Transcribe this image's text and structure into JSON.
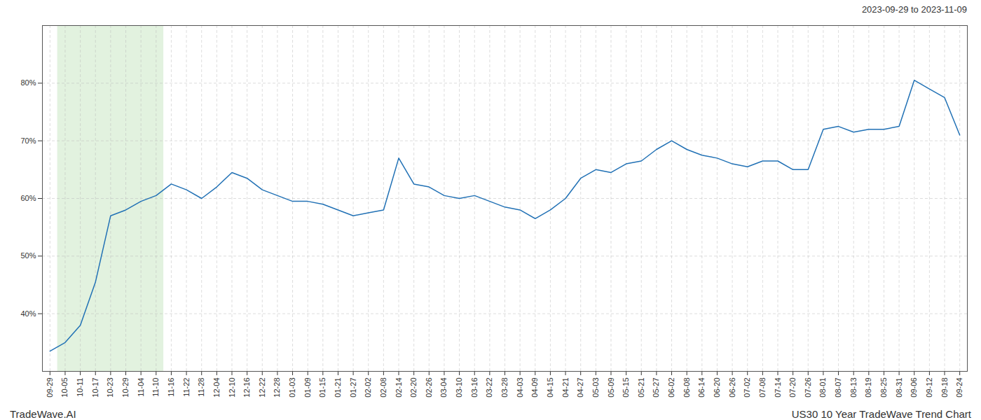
{
  "chart_data": {
    "type": "line",
    "title": "2023-09-29 to 2023-11-09",
    "annotations": [
      {
        "text": "TradeWave.AI"
      },
      {
        "text": "US30 10 Year TradeWave Trend Chart"
      }
    ],
    "categories": [
      "09-29",
      "10-05",
      "10-11",
      "10-17",
      "10-23",
      "10-29",
      "11-04",
      "11-10",
      "11-16",
      "11-22",
      "11-28",
      "12-04",
      "12-10",
      "12-16",
      "12-22",
      "12-28",
      "01-03",
      "01-09",
      "01-15",
      "01-21",
      "01-27",
      "02-02",
      "02-08",
      "02-14",
      "02-20",
      "02-26",
      "03-04",
      "03-10",
      "03-16",
      "03-22",
      "03-28",
      "04-03",
      "04-09",
      "04-15",
      "04-21",
      "04-27",
      "05-03",
      "05-09",
      "05-15",
      "05-21",
      "05-27",
      "06-02",
      "06-08",
      "06-14",
      "06-20",
      "06-26",
      "07-02",
      "07-08",
      "07-14",
      "07-20",
      "07-26",
      "08-01",
      "08-07",
      "08-13",
      "08-19",
      "08-25",
      "08-31",
      "09-06",
      "09-12",
      "09-18",
      "09-24"
    ],
    "values": [
      33.5,
      35.0,
      38.0,
      45.5,
      57.0,
      58.0,
      59.5,
      60.5,
      62.5,
      61.5,
      60.0,
      62.0,
      64.5,
      63.5,
      61.5,
      60.5,
      59.5,
      59.5,
      59.0,
      58.0,
      57.0,
      57.5,
      58.0,
      67.0,
      62.5,
      62.0,
      60.5,
      60.0,
      60.5,
      59.5,
      58.5,
      58.0,
      56.5,
      58.0,
      60.0,
      63.5,
      65.0,
      64.5,
      66.0,
      66.5,
      68.5,
      70.0,
      68.5,
      67.5,
      67.0,
      66.0,
      65.5,
      66.5,
      66.5,
      65.0,
      65.0,
      72.0,
      72.5,
      71.5,
      72.0,
      72.0,
      72.5,
      80.5,
      79.0,
      77.5,
      71.0
    ],
    "color": "#2171b5",
    "shade": {
      "from": "10-05",
      "to": "11-10",
      "color": "#d6ecd2"
    },
    "ylim": [
      30,
      90
    ],
    "yticks": [
      {
        "value": 40,
        "label": "40%"
      },
      {
        "value": 50,
        "label": "50%"
      },
      {
        "value": 60,
        "label": "60%"
      },
      {
        "value": 70,
        "label": "70%"
      },
      {
        "value": 80,
        "label": "80%"
      }
    ],
    "grid": true
  }
}
